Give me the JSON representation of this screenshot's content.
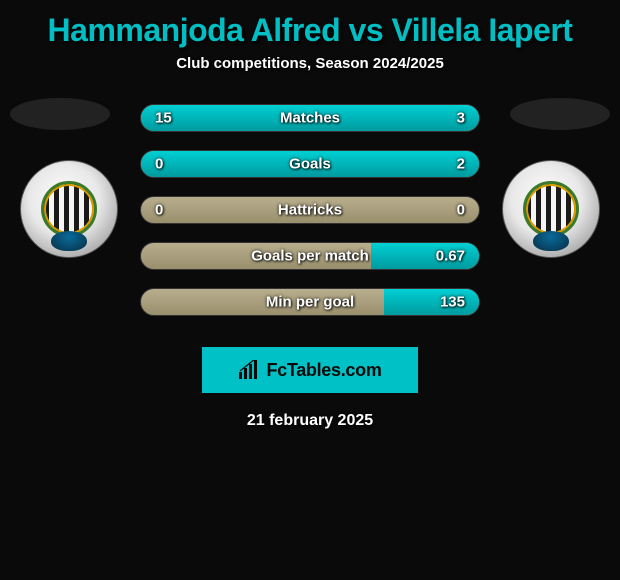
{
  "header": {
    "title": "Hammanjoda Alfred vs Villela Iapert",
    "subtitle": "Club competitions, Season 2024/2025"
  },
  "colors": {
    "accent": "#00bfc4",
    "bar_fill": "#00c2c6",
    "bar_bg_top": "#b8ae8d",
    "bar_bg_bottom": "#9a8f6d",
    "page_bg": "#0a0a0a",
    "text": "#ffffff"
  },
  "stats": [
    {
      "label": "Matches",
      "left_value": "15",
      "right_value": "3",
      "left_pct": 83,
      "right_pct": 17
    },
    {
      "label": "Goals",
      "left_value": "0",
      "right_value": "2",
      "left_pct": 0,
      "right_pct": 100
    },
    {
      "label": "Hattricks",
      "left_value": "0",
      "right_value": "0",
      "left_pct": 0,
      "right_pct": 0
    },
    {
      "label": "Goals per match",
      "left_value": "",
      "right_value": "0.67",
      "left_pct": 0,
      "right_pct": 32
    },
    {
      "label": "Min per goal",
      "left_value": "",
      "right_value": "135",
      "left_pct": 0,
      "right_pct": 28
    }
  ],
  "brand": {
    "text": "FcTables.com",
    "icon_name": "bar-chart-icon"
  },
  "footer": {
    "date": "21 february 2025"
  }
}
